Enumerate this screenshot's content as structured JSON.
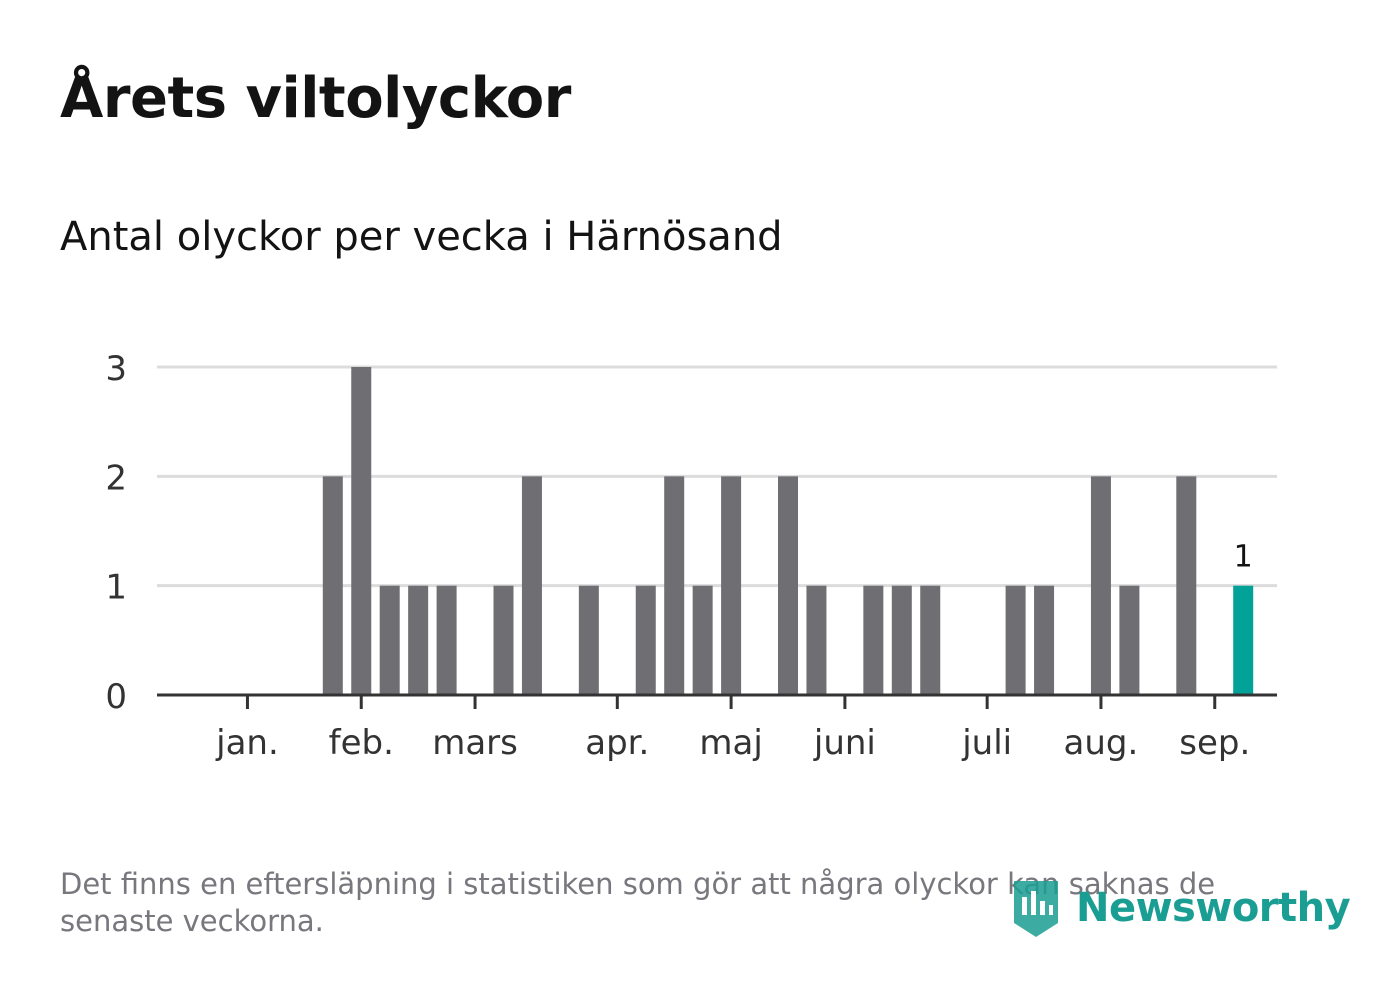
{
  "title": "Årets viltolyckor",
  "subtitle": "Antal olyckor per vecka i Härnösand",
  "footnote": "Det finns en eftersläpning i statistiken som gör att några olyckor kan saknas de senaste veckorna.",
  "brand": {
    "name": "Newsworthy",
    "icon": "newsworthy-logo-icon",
    "color": "#1a9e93"
  },
  "chart_data": {
    "type": "bar",
    "x_unit": "week",
    "x_ticks": [
      {
        "label": "jan.",
        "week": 2
      },
      {
        "label": "feb.",
        "week": 6
      },
      {
        "label": "mars",
        "week": 10
      },
      {
        "label": "apr.",
        "week": 15
      },
      {
        "label": "maj",
        "week": 19
      },
      {
        "label": "juni",
        "week": 23
      },
      {
        "label": "juli",
        "week": 28
      },
      {
        "label": "aug.",
        "week": 32
      },
      {
        "label": "sep.",
        "week": 36
      }
    ],
    "weeks": [
      1,
      2,
      3,
      4,
      5,
      6,
      7,
      8,
      9,
      10,
      11,
      12,
      13,
      14,
      15,
      16,
      17,
      18,
      19,
      20,
      21,
      22,
      23,
      24,
      25,
      26,
      27,
      28,
      29,
      30,
      31,
      32,
      33,
      34,
      35,
      36,
      37
    ],
    "values": [
      0,
      0,
      0,
      0,
      2,
      3,
      1,
      1,
      1,
      0,
      1,
      2,
      0,
      1,
      0,
      1,
      2,
      1,
      2,
      0,
      2,
      1,
      0,
      1,
      1,
      1,
      0,
      0,
      1,
      1,
      0,
      2,
      1,
      0,
      2,
      0,
      1
    ],
    "ylim": [
      0,
      3
    ],
    "yticks": [
      "0",
      "1",
      "2",
      "3"
    ],
    "grid": true,
    "highlight_index": 36,
    "highlight_label": "1",
    "colors": {
      "bar": "#6f6e73",
      "highlight": "#03a298",
      "grid": "#dcdcdc",
      "axis": "#333333",
      "text": "#333333"
    }
  }
}
